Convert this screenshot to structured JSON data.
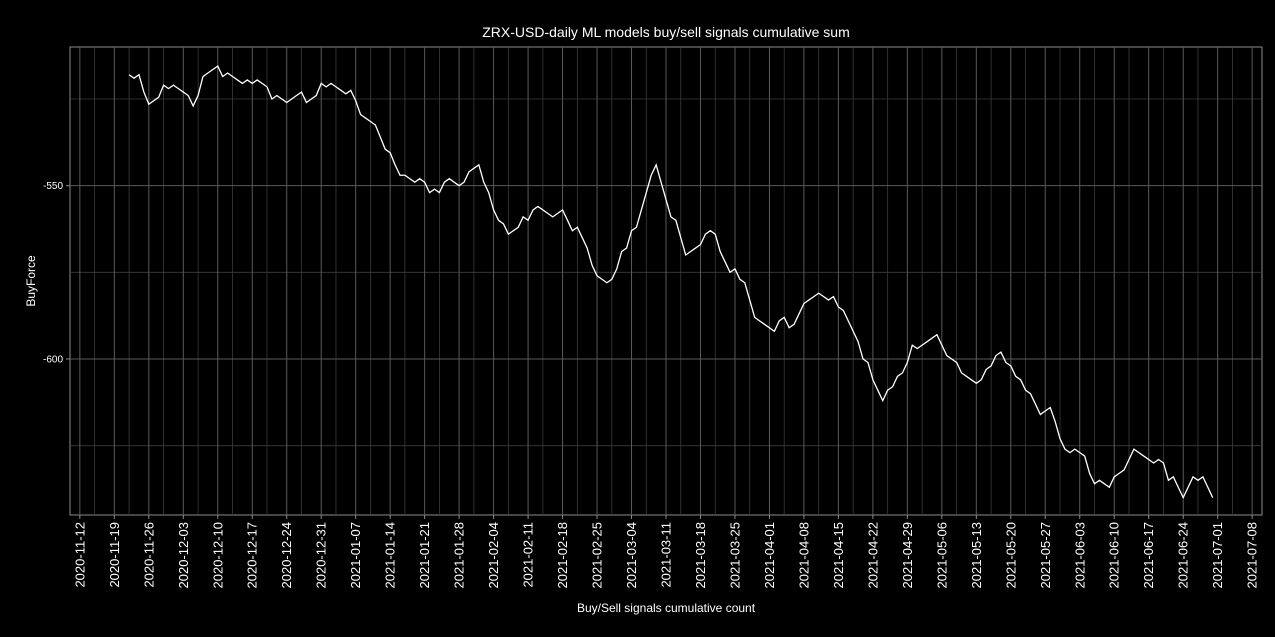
{
  "chart_data": {
    "type": "line",
    "title": "ZRX-USD-daily ML models buy/sell signals cumulative sum",
    "xlabel": "Buy/Sell signals cumulative count",
    "ylabel": "BuyForce",
    "x_tick_labels": [
      "2020-11-12",
      "2020-11-19",
      "2020-11-26",
      "2020-12-03",
      "2020-12-10",
      "2020-12-17",
      "2020-12-24",
      "2020-12-31",
      "2021-01-07",
      "2021-01-14",
      "2021-01-21",
      "2021-01-28",
      "2021-02-04",
      "2021-02-11",
      "2021-02-18",
      "2021-02-25",
      "2021-03-04",
      "2021-03-11",
      "2021-03-18",
      "2021-03-25",
      "2021-04-01",
      "2021-04-08",
      "2021-04-15",
      "2021-04-22",
      "2021-04-29",
      "2021-05-06",
      "2021-05-13",
      "2021-05-20",
      "2021-05-27",
      "2021-06-03",
      "2021-06-10",
      "2021-06-17",
      "2021-06-24",
      "2021-07-01",
      "2021-07-08"
    ],
    "y_ticks": [
      -550,
      -600
    ],
    "xlim": [
      "2020-11-10",
      "2021-07-10"
    ],
    "ylim": [
      -645,
      -510
    ],
    "grid": true,
    "line_color": "#ffffff",
    "series": [
      {
        "points": [
          [
            "2020-11-22",
            -518.0
          ],
          [
            "2020-11-23",
            -519.0
          ],
          [
            "2020-11-24",
            -518.0
          ],
          [
            "2020-11-25",
            -523.0
          ],
          [
            "2020-11-26",
            -526.5
          ],
          [
            "2020-11-27",
            -525.5
          ],
          [
            "2020-11-28",
            -524.5
          ],
          [
            "2020-11-29",
            -521.0
          ],
          [
            "2020-11-30",
            -522.0
          ],
          [
            "2020-12-01",
            -521.0
          ],
          [
            "2020-12-02",
            -522.0
          ],
          [
            "2020-12-03",
            -523.0
          ],
          [
            "2020-12-04",
            -524.0
          ],
          [
            "2020-12-05",
            -527.0
          ],
          [
            "2020-12-06",
            -524.0
          ],
          [
            "2020-12-07",
            -518.5
          ],
          [
            "2020-12-08",
            -517.5
          ],
          [
            "2020-12-09",
            -516.5
          ],
          [
            "2020-12-10",
            -515.5
          ],
          [
            "2020-12-11",
            -518.5
          ],
          [
            "2020-12-12",
            -517.5
          ],
          [
            "2020-12-13",
            -518.5
          ],
          [
            "2020-12-14",
            -519.5
          ],
          [
            "2020-12-15",
            -520.5
          ],
          [
            "2020-12-16",
            -519.5
          ],
          [
            "2020-12-17",
            -520.5
          ],
          [
            "2020-12-18",
            -519.5
          ],
          [
            "2020-12-19",
            -520.5
          ],
          [
            "2020-12-20",
            -521.5
          ],
          [
            "2020-12-21",
            -525.0
          ],
          [
            "2020-12-22",
            -524.0
          ],
          [
            "2020-12-23",
            -525.0
          ],
          [
            "2020-12-24",
            -526.0
          ],
          [
            "2020-12-25",
            -525.0
          ],
          [
            "2020-12-26",
            -524.0
          ],
          [
            "2020-12-27",
            -523.0
          ],
          [
            "2020-12-28",
            -526.0
          ],
          [
            "2020-12-29",
            -525.0
          ],
          [
            "2020-12-30",
            -524.0
          ],
          [
            "2020-12-31",
            -520.5
          ],
          [
            "2021-01-01",
            -521.5
          ],
          [
            "2021-01-02",
            -520.5
          ],
          [
            "2021-01-03",
            -521.5
          ],
          [
            "2021-01-04",
            -522.5
          ],
          [
            "2021-01-05",
            -523.5
          ],
          [
            "2021-01-06",
            -522.5
          ],
          [
            "2021-01-07",
            -525.5
          ],
          [
            "2021-01-08",
            -529.5
          ],
          [
            "2021-01-09",
            -530.5
          ],
          [
            "2021-01-10",
            -531.5
          ],
          [
            "2021-01-11",
            -532.5
          ],
          [
            "2021-01-12",
            -536.0
          ],
          [
            "2021-01-13",
            -539.5
          ],
          [
            "2021-01-14",
            -540.5
          ],
          [
            "2021-01-15",
            -544.0
          ],
          [
            "2021-01-16",
            -547.0
          ],
          [
            "2021-01-17",
            -547.0
          ],
          [
            "2021-01-18",
            -548.0
          ],
          [
            "2021-01-19",
            -549.0
          ],
          [
            "2021-01-20",
            -548.0
          ],
          [
            "2021-01-21",
            -549.0
          ],
          [
            "2021-01-22",
            -552.0
          ],
          [
            "2021-01-23",
            -551.0
          ],
          [
            "2021-01-24",
            -552.0
          ],
          [
            "2021-01-25",
            -549.0
          ],
          [
            "2021-01-26",
            -548.0
          ],
          [
            "2021-01-27",
            -549.0
          ],
          [
            "2021-01-28",
            -550.0
          ],
          [
            "2021-01-29",
            -549.0
          ],
          [
            "2021-01-30",
            -546.0
          ],
          [
            "2021-01-31",
            -545.0
          ],
          [
            "2021-02-01",
            -544.0
          ],
          [
            "2021-02-02",
            -549.0
          ],
          [
            "2021-02-03",
            -552.0
          ],
          [
            "2021-02-04",
            -557.0
          ],
          [
            "2021-02-05",
            -560.0
          ],
          [
            "2021-02-06",
            -561.0
          ],
          [
            "2021-02-07",
            -564.0
          ],
          [
            "2021-02-08",
            -563.0
          ],
          [
            "2021-02-09",
            -562.0
          ],
          [
            "2021-02-10",
            -559.0
          ],
          [
            "2021-02-11",
            -560.0
          ],
          [
            "2021-02-12",
            -557.0
          ],
          [
            "2021-02-13",
            -556.0
          ],
          [
            "2021-02-14",
            -557.0
          ],
          [
            "2021-02-15",
            -558.0
          ],
          [
            "2021-02-16",
            -559.0
          ],
          [
            "2021-02-17",
            -558.0
          ],
          [
            "2021-02-18",
            -557.0
          ],
          [
            "2021-02-19",
            -560.0
          ],
          [
            "2021-02-20",
            -563.0
          ],
          [
            "2021-02-21",
            -562.0
          ],
          [
            "2021-02-22",
            -565.0
          ],
          [
            "2021-02-23",
            -568.0
          ],
          [
            "2021-02-24",
            -573.0
          ],
          [
            "2021-02-25",
            -576.0
          ],
          [
            "2021-02-26",
            -577.0
          ],
          [
            "2021-02-27",
            -578.0
          ],
          [
            "2021-02-28",
            -577.0
          ],
          [
            "2021-03-01",
            -574.0
          ],
          [
            "2021-03-02",
            -569.0
          ],
          [
            "2021-03-03",
            -568.0
          ],
          [
            "2021-03-04",
            -563.0
          ],
          [
            "2021-03-05",
            -562.0
          ],
          [
            "2021-03-06",
            -557.0
          ],
          [
            "2021-03-07",
            -552.0
          ],
          [
            "2021-03-08",
            -547.0
          ],
          [
            "2021-03-09",
            -544.0
          ],
          [
            "2021-03-10",
            -549.0
          ],
          [
            "2021-03-11",
            -554.0
          ],
          [
            "2021-03-12",
            -559.0
          ],
          [
            "2021-03-13",
            -560.0
          ],
          [
            "2021-03-14",
            -565.0
          ],
          [
            "2021-03-15",
            -570.0
          ],
          [
            "2021-03-16",
            -569.0
          ],
          [
            "2021-03-17",
            -568.0
          ],
          [
            "2021-03-18",
            -567.0
          ],
          [
            "2021-03-19",
            -564.0
          ],
          [
            "2021-03-20",
            -563.0
          ],
          [
            "2021-03-21",
            -564.0
          ],
          [
            "2021-03-22",
            -569.0
          ],
          [
            "2021-03-23",
            -572.0
          ],
          [
            "2021-03-24",
            -575.0
          ],
          [
            "2021-03-25",
            -574.0
          ],
          [
            "2021-03-26",
            -577.0
          ],
          [
            "2021-03-27",
            -578.0
          ],
          [
            "2021-03-28",
            -583.0
          ],
          [
            "2021-03-29",
            -588.0
          ],
          [
            "2021-03-30",
            -589.0
          ],
          [
            "2021-03-31",
            -590.0
          ],
          [
            "2021-04-01",
            -591.0
          ],
          [
            "2021-04-02",
            -592.0
          ],
          [
            "2021-04-03",
            -589.0
          ],
          [
            "2021-04-04",
            -588.0
          ],
          [
            "2021-04-05",
            -591.0
          ],
          [
            "2021-04-06",
            -590.0
          ],
          [
            "2021-04-07",
            -587.0
          ],
          [
            "2021-04-08",
            -584.0
          ],
          [
            "2021-04-09",
            -583.0
          ],
          [
            "2021-04-10",
            -582.0
          ],
          [
            "2021-04-11",
            -581.0
          ],
          [
            "2021-04-12",
            -582.0
          ],
          [
            "2021-04-13",
            -583.0
          ],
          [
            "2021-04-14",
            -582.0
          ],
          [
            "2021-04-15",
            -585.0
          ],
          [
            "2021-04-16",
            -586.0
          ],
          [
            "2021-04-17",
            -589.0
          ],
          [
            "2021-04-18",
            -592.0
          ],
          [
            "2021-04-19",
            -595.0
          ],
          [
            "2021-04-20",
            -600.0
          ],
          [
            "2021-04-21",
            -601.0
          ],
          [
            "2021-04-22",
            -606.0
          ],
          [
            "2021-04-23",
            -609.0
          ],
          [
            "2021-04-24",
            -612.0
          ],
          [
            "2021-04-25",
            -609.0
          ],
          [
            "2021-04-26",
            -608.0
          ],
          [
            "2021-04-27",
            -605.0
          ],
          [
            "2021-04-28",
            -604.0
          ],
          [
            "2021-04-29",
            -601.0
          ],
          [
            "2021-04-30",
            -596.0
          ],
          [
            "2021-05-01",
            -597.0
          ],
          [
            "2021-05-02",
            -596.0
          ],
          [
            "2021-05-03",
            -595.0
          ],
          [
            "2021-05-04",
            -594.0
          ],
          [
            "2021-05-05",
            -593.0
          ],
          [
            "2021-05-06",
            -596.0
          ],
          [
            "2021-05-07",
            -599.0
          ],
          [
            "2021-05-08",
            -600.0
          ],
          [
            "2021-05-09",
            -601.0
          ],
          [
            "2021-05-10",
            -604.0
          ],
          [
            "2021-05-11",
            -605.0
          ],
          [
            "2021-05-12",
            -606.0
          ],
          [
            "2021-05-13",
            -607.0
          ],
          [
            "2021-05-14",
            -606.0
          ],
          [
            "2021-05-15",
            -603.0
          ],
          [
            "2021-05-16",
            -602.0
          ],
          [
            "2021-05-17",
            -599.0
          ],
          [
            "2021-05-18",
            -598.0
          ],
          [
            "2021-05-19",
            -601.0
          ],
          [
            "2021-05-20",
            -602.0
          ],
          [
            "2021-05-21",
            -605.0
          ],
          [
            "2021-05-22",
            -606.0
          ],
          [
            "2021-05-23",
            -609.0
          ],
          [
            "2021-05-24",
            -610.0
          ],
          [
            "2021-05-25",
            -613.0
          ],
          [
            "2021-05-26",
            -616.0
          ],
          [
            "2021-05-27",
            -615.0
          ],
          [
            "2021-05-28",
            -614.0
          ],
          [
            "2021-05-29",
            -618.0
          ],
          [
            "2021-05-30",
            -623.0
          ],
          [
            "2021-05-31",
            -626.0
          ],
          [
            "2021-06-01",
            -627.0
          ],
          [
            "2021-06-02",
            -626.0
          ],
          [
            "2021-06-03",
            -627.0
          ],
          [
            "2021-06-04",
            -628.0
          ],
          [
            "2021-06-05",
            -633.0
          ],
          [
            "2021-06-06",
            -636.0
          ],
          [
            "2021-06-07",
            -635.0
          ],
          [
            "2021-06-08",
            -636.0
          ],
          [
            "2021-06-09",
            -637.0
          ],
          [
            "2021-06-10",
            -634.0
          ],
          [
            "2021-06-11",
            -633.0
          ],
          [
            "2021-06-12",
            -632.0
          ],
          [
            "2021-06-13",
            -629.0
          ],
          [
            "2021-06-14",
            -626.0
          ],
          [
            "2021-06-15",
            -627.0
          ],
          [
            "2021-06-16",
            -628.0
          ],
          [
            "2021-06-17",
            -629.0
          ],
          [
            "2021-06-18",
            -630.0
          ],
          [
            "2021-06-19",
            -629.0
          ],
          [
            "2021-06-20",
            -630.0
          ],
          [
            "2021-06-21",
            -635.0
          ],
          [
            "2021-06-22",
            -634.0
          ],
          [
            "2021-06-23",
            -637.0
          ],
          [
            "2021-06-24",
            -640.0
          ],
          [
            "2021-06-25",
            -637.0
          ],
          [
            "2021-06-26",
            -634.0
          ],
          [
            "2021-06-27",
            -635.0
          ],
          [
            "2021-06-28",
            -634.0
          ],
          [
            "2021-06-29",
            -637.0
          ],
          [
            "2021-06-30",
            -640.0
          ]
        ]
      }
    ]
  }
}
